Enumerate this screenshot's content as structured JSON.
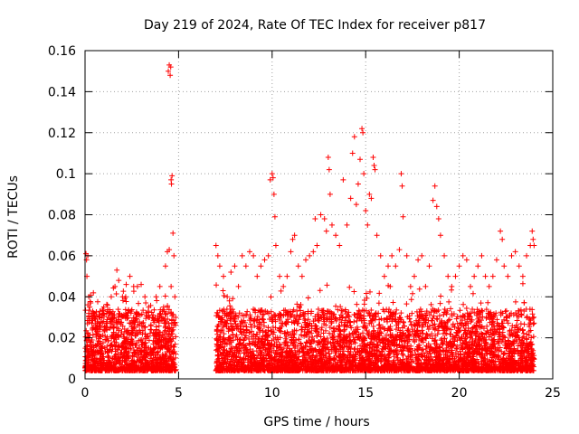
{
  "chart_data": {
    "type": "scatter",
    "title": "Day 219 of 2024, Rate Of TEC Index for receiver p817",
    "xlabel": "GPS time / hours",
    "ylabel": "ROTI / TECUs",
    "xlim": [
      0,
      25
    ],
    "ylim": [
      0,
      0.16
    ],
    "xticks": [
      {
        "value": 0,
        "label": "0"
      },
      {
        "value": 5,
        "label": "5"
      },
      {
        "value": 10,
        "label": "10"
      },
      {
        "value": 15,
        "label": "15"
      },
      {
        "value": 20,
        "label": "20"
      },
      {
        "value": 25,
        "label": "25"
      }
    ],
    "yticks": [
      {
        "value": 0,
        "label": "0"
      },
      {
        "value": 0.02,
        "label": "0.02"
      },
      {
        "value": 0.04,
        "label": "0.04"
      },
      {
        "value": 0.06,
        "label": "0.06"
      },
      {
        "value": 0.08,
        "label": "0.08"
      },
      {
        "value": 0.1,
        "label": "0.1"
      },
      {
        "value": 0.12,
        "label": "0.12"
      },
      {
        "value": 0.14,
        "label": "0.14"
      },
      {
        "value": 0.16,
        "label": "0.16"
      }
    ],
    "grid": true,
    "marker": "plus",
    "color": "#ff0000",
    "series": [
      {
        "points": [
          [
            0.05,
            0.061
          ],
          [
            0.08,
            0.058
          ],
          [
            0.1,
            0.05
          ],
          [
            0.15,
            0.06
          ],
          [
            0.2,
            0.04
          ],
          [
            0.25,
            0.035
          ],
          [
            0.3,
            0.037
          ],
          [
            0.4,
            0.03
          ],
          [
            0.5,
            0.03
          ],
          [
            0.6,
            0.025
          ],
          [
            0.8,
            0.03
          ],
          [
            1.0,
            0.028
          ],
          [
            1.2,
            0.036
          ],
          [
            1.4,
            0.04
          ],
          [
            1.6,
            0.045
          ],
          [
            1.7,
            0.053
          ],
          [
            1.8,
            0.048
          ],
          [
            2.0,
            0.04
          ],
          [
            2.2,
            0.046
          ],
          [
            2.4,
            0.05
          ],
          [
            2.6,
            0.045
          ],
          [
            2.8,
            0.045
          ],
          [
            3.0,
            0.046
          ],
          [
            3.2,
            0.04
          ],
          [
            3.4,
            0.035
          ],
          [
            3.6,
            0.03
          ],
          [
            3.8,
            0.04
          ],
          [
            4.0,
            0.045
          ],
          [
            4.2,
            0.035
          ],
          [
            4.3,
            0.055
          ],
          [
            4.4,
            0.062
          ],
          [
            4.45,
            0.15
          ],
          [
            4.5,
            0.153
          ],
          [
            4.55,
            0.148
          ],
          [
            4.58,
            0.152
          ],
          [
            4.6,
            0.097
          ],
          [
            4.62,
            0.095
          ],
          [
            4.65,
            0.099
          ],
          [
            4.7,
            0.071
          ],
          [
            4.75,
            0.06
          ],
          [
            4.8,
            0.04
          ],
          [
            4.85,
            0.03
          ],
          [
            4.5,
            0.063
          ],
          [
            4.6,
            0.045
          ],
          [
            4.4,
            0.035
          ],
          [
            7.0,
            0.065
          ],
          [
            7.1,
            0.06
          ],
          [
            7.2,
            0.055
          ],
          [
            7.4,
            0.05
          ],
          [
            7.6,
            0.04
          ],
          [
            7.8,
            0.052
          ],
          [
            8.0,
            0.055
          ],
          [
            8.2,
            0.045
          ],
          [
            8.4,
            0.06
          ],
          [
            8.6,
            0.055
          ],
          [
            8.8,
            0.062
          ],
          [
            9.0,
            0.06
          ],
          [
            9.2,
            0.05
          ],
          [
            9.4,
            0.055
          ],
          [
            9.6,
            0.058
          ],
          [
            9.8,
            0.06
          ],
          [
            9.9,
            0.097
          ],
          [
            10.0,
            0.1
          ],
          [
            10.05,
            0.098
          ],
          [
            10.1,
            0.09
          ],
          [
            10.15,
            0.079
          ],
          [
            10.2,
            0.065
          ],
          [
            10.4,
            0.05
          ],
          [
            10.6,
            0.045
          ],
          [
            10.8,
            0.05
          ],
          [
            11.0,
            0.062
          ],
          [
            11.1,
            0.068
          ],
          [
            11.2,
            0.07
          ],
          [
            11.4,
            0.055
          ],
          [
            11.6,
            0.05
          ],
          [
            11.8,
            0.058
          ],
          [
            12.0,
            0.06
          ],
          [
            12.2,
            0.062
          ],
          [
            12.3,
            0.078
          ],
          [
            12.4,
            0.065
          ],
          [
            12.6,
            0.08
          ],
          [
            12.8,
            0.078
          ],
          [
            12.9,
            0.072
          ],
          [
            13.0,
            0.108
          ],
          [
            13.05,
            0.102
          ],
          [
            13.1,
            0.09
          ],
          [
            13.2,
            0.075
          ],
          [
            13.4,
            0.07
          ],
          [
            13.6,
            0.065
          ],
          [
            13.8,
            0.097
          ],
          [
            14.0,
            0.075
          ],
          [
            14.2,
            0.088
          ],
          [
            14.3,
            0.11
          ],
          [
            14.4,
            0.118
          ],
          [
            14.5,
            0.085
          ],
          [
            14.6,
            0.095
          ],
          [
            14.7,
            0.107
          ],
          [
            14.8,
            0.122
          ],
          [
            14.85,
            0.12
          ],
          [
            14.9,
            0.1
          ],
          [
            15.0,
            0.082
          ],
          [
            15.1,
            0.075
          ],
          [
            15.2,
            0.09
          ],
          [
            15.3,
            0.088
          ],
          [
            15.4,
            0.108
          ],
          [
            15.45,
            0.104
          ],
          [
            15.5,
            0.102
          ],
          [
            15.6,
            0.07
          ],
          [
            15.8,
            0.06
          ],
          [
            16.0,
            0.05
          ],
          [
            16.2,
            0.055
          ],
          [
            16.4,
            0.06
          ],
          [
            16.6,
            0.055
          ],
          [
            16.8,
            0.063
          ],
          [
            16.9,
            0.1
          ],
          [
            16.95,
            0.094
          ],
          [
            17.0,
            0.079
          ],
          [
            17.2,
            0.06
          ],
          [
            17.4,
            0.045
          ],
          [
            17.6,
            0.05
          ],
          [
            17.8,
            0.058
          ],
          [
            18.0,
            0.06
          ],
          [
            18.2,
            0.045
          ],
          [
            18.4,
            0.055
          ],
          [
            18.6,
            0.087
          ],
          [
            18.7,
            0.094
          ],
          [
            18.8,
            0.084
          ],
          [
            18.9,
            0.078
          ],
          [
            19.0,
            0.07
          ],
          [
            19.2,
            0.06
          ],
          [
            19.4,
            0.05
          ],
          [
            19.6,
            0.045
          ],
          [
            19.8,
            0.05
          ],
          [
            20.0,
            0.055
          ],
          [
            20.2,
            0.06
          ],
          [
            20.4,
            0.058
          ],
          [
            20.6,
            0.045
          ],
          [
            20.8,
            0.05
          ],
          [
            21.0,
            0.055
          ],
          [
            21.2,
            0.06
          ],
          [
            21.4,
            0.05
          ],
          [
            21.6,
            0.045
          ],
          [
            21.8,
            0.05
          ],
          [
            22.0,
            0.058
          ],
          [
            22.2,
            0.072
          ],
          [
            22.3,
            0.068
          ],
          [
            22.4,
            0.055
          ],
          [
            22.6,
            0.05
          ],
          [
            22.8,
            0.06
          ],
          [
            23.0,
            0.062
          ],
          [
            23.2,
            0.055
          ],
          [
            23.4,
            0.05
          ],
          [
            23.6,
            0.06
          ],
          [
            23.8,
            0.065
          ],
          [
            23.9,
            0.072
          ],
          [
            23.95,
            0.068
          ],
          [
            24.0,
            0.065
          ]
        ]
      }
    ]
  }
}
